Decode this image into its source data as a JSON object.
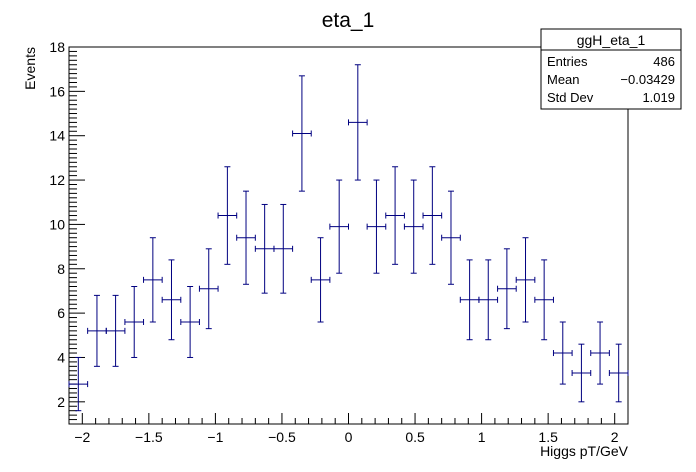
{
  "chart_data": {
    "type": "scatter",
    "title": "eta_1",
    "xlabel": "Higgs pT/GeV",
    "ylabel": "Events",
    "xlim": [
      -2.1,
      2.1
    ],
    "ylim": [
      1,
      18
    ],
    "xticks": [
      -2,
      -1.5,
      -1,
      -0.5,
      0,
      0.5,
      1,
      1.5,
      2
    ],
    "xtick_labels": [
      "−2",
      "−1.5",
      "−1",
      "−0.5",
      "0",
      "0.5",
      "1",
      "1.5",
      "2"
    ],
    "yticks": [
      2,
      4,
      6,
      8,
      10,
      12,
      14,
      16,
      18
    ],
    "ytick_labels": [
      "2",
      "4",
      "6",
      "8",
      "10",
      "12",
      "14",
      "16",
      "18"
    ],
    "bin_width": 0.14,
    "marker_color": "#000080",
    "x": [
      -2.03,
      -1.89,
      -1.75,
      -1.61,
      -1.47,
      -1.33,
      -1.19,
      -1.05,
      -0.91,
      -0.77,
      -0.63,
      -0.49,
      -0.35,
      -0.21,
      -0.07,
      0.07,
      0.21,
      0.35,
      0.49,
      0.63,
      0.77,
      0.91,
      1.05,
      1.19,
      1.33,
      1.47,
      1.61,
      1.75,
      1.89,
      2.03
    ],
    "y": [
      2.8,
      5.2,
      5.2,
      5.6,
      7.5,
      6.6,
      5.6,
      7.1,
      10.4,
      9.4,
      8.9,
      8.9,
      14.1,
      7.5,
      9.9,
      14.6,
      9.9,
      10.4,
      9.9,
      10.4,
      9.4,
      6.6,
      6.6,
      7.1,
      7.5,
      6.6,
      4.2,
      3.3,
      4.2,
      3.3
    ],
    "yerr": [
      1.2,
      1.6,
      1.6,
      1.6,
      1.9,
      1.8,
      1.6,
      1.8,
      2.2,
      2.1,
      2.0,
      2.0,
      2.6,
      1.9,
      2.1,
      2.6,
      2.1,
      2.2,
      2.1,
      2.2,
      2.1,
      1.8,
      1.8,
      1.8,
      1.9,
      1.8,
      1.4,
      1.3,
      1.4,
      1.3
    ],
    "grid": false,
    "stats_box": {
      "placement": "top-right",
      "title": "ggH_eta_1",
      "rows": [
        {
          "label": "Entries",
          "value": "486"
        },
        {
          "label": "Mean",
          "value": "−0.03429"
        },
        {
          "label": "Std Dev",
          "value": "1.019"
        }
      ]
    }
  }
}
